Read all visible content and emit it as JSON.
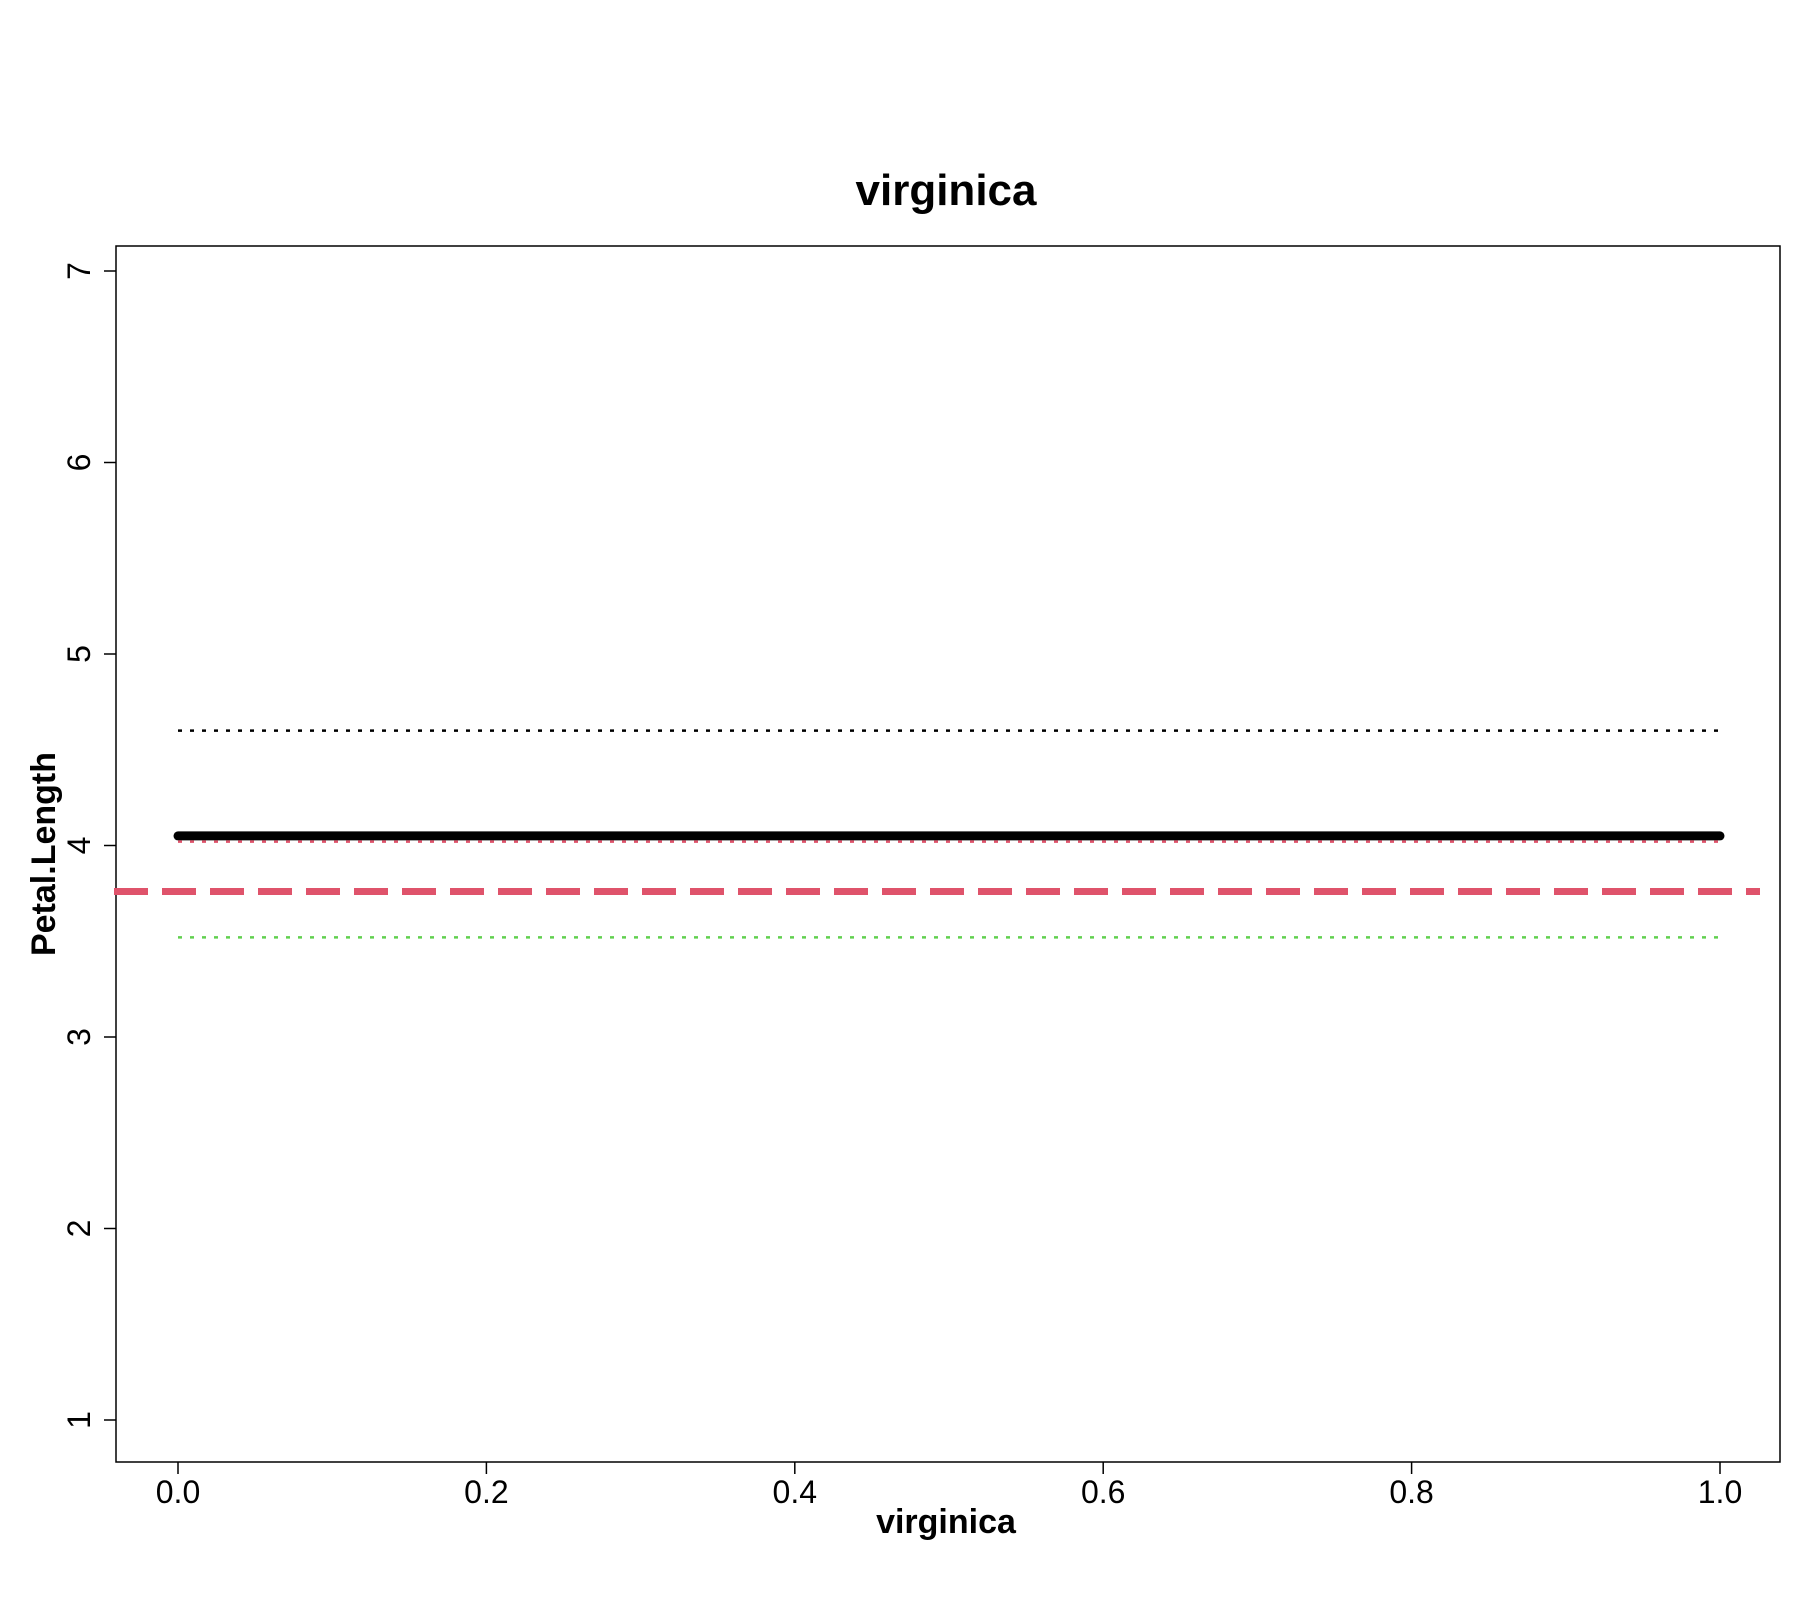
{
  "chart_data": {
    "type": "line",
    "title": "virginica",
    "xlabel": "virginica",
    "ylabel": "Petal.Length",
    "xlim": [
      0.0,
      1.0
    ],
    "ylim": [
      1,
      7
    ],
    "x_ticks": [
      "0.0",
      "0.2",
      "0.4",
      "0.6",
      "0.8",
      "1.0"
    ],
    "y_ticks": [
      "1",
      "2",
      "3",
      "4",
      "5",
      "6",
      "7"
    ],
    "grid": false,
    "legend": "none",
    "series": [
      {
        "x": [
          0.0,
          1.0
        ],
        "y": [
          4.05,
          4.05
        ],
        "color": "#000000",
        "style": "solid-thick"
      },
      {
        "x": [
          0.0,
          1.0
        ],
        "y": [
          4.6,
          4.6
        ],
        "color": "#000000",
        "style": "dotted"
      },
      {
        "x": [
          0.0,
          1.0
        ],
        "y": [
          4.02,
          4.02
        ],
        "color": "#DF536B",
        "style": "dotted"
      },
      {
        "x": [
          0.0,
          1.0
        ],
        "y": [
          3.52,
          3.52
        ],
        "color": "#61D04F",
        "style": "dotted"
      }
    ],
    "reference_lines": [
      {
        "orientation": "horizontal",
        "y": 3.76,
        "color": "#DF536B",
        "style": "dashed-thick"
      }
    ]
  }
}
